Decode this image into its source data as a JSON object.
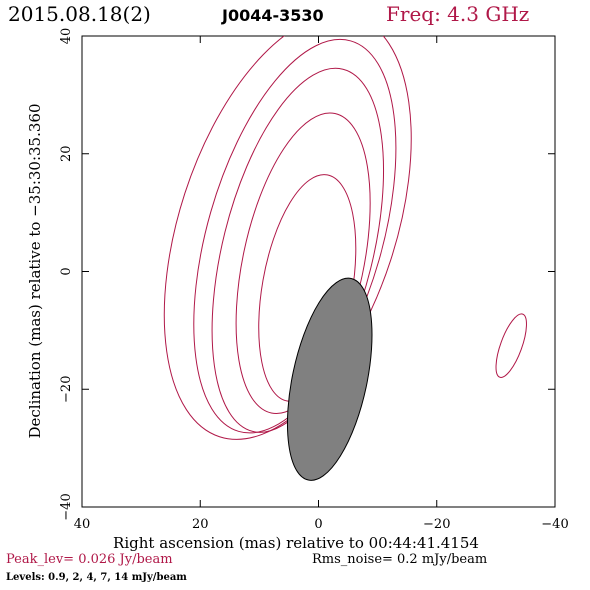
{
  "header": {
    "date": "2015.08.18(2)",
    "source": "J0044-3530",
    "freq": "Freq: 4.3 GHz"
  },
  "chart_data": {
    "type": "contour",
    "xlabel": "Right ascension (mas) relative to 00:44:41.4154",
    "ylabel": "Declination (mas) relative to −35:30:35.360",
    "xlim": [
      40,
      -40
    ],
    "ylim": [
      -40,
      40
    ],
    "x_ticks": [
      40,
      20,
      0,
      -20,
      -40
    ],
    "y_ticks": [
      -40,
      -20,
      0,
      20,
      40
    ],
    "x_tick_labels": [
      "40",
      "20",
      "0",
      "−20",
      "−40"
    ],
    "y_tick_labels": [
      "−40",
      "−20",
      "0",
      "20",
      "40"
    ],
    "contour_color": "#b01848",
    "contours": [
      {
        "level": 0.9,
        "cx": 5.2,
        "cy": 7.6,
        "a": 37.5,
        "b": 18.3,
        "pa": -18
      },
      {
        "level": 2,
        "cx": 4.0,
        "cy": 6.0,
        "a": 34.5,
        "b": 14.8,
        "pa": -16
      },
      {
        "level": 4,
        "cx": 3.5,
        "cy": 3.6,
        "a": 31.7,
        "b": 12.7,
        "pa": -14
      },
      {
        "level": 7,
        "cx": 2.6,
        "cy": 1.4,
        "a": 26.0,
        "b": 10.2,
        "pa": -12
      },
      {
        "level": 14,
        "cx": 1.9,
        "cy": -2.8,
        "a": 19.5,
        "b": 7.6,
        "pa": -10
      },
      {
        "level": 0.9,
        "cx": -32.6,
        "cy": -12.6,
        "a": 5.7,
        "b": 1.8,
        "pa": -20
      }
    ],
    "beam": {
      "cx": -1.9,
      "cy": -18.3,
      "a": 17.5,
      "b": 6.3,
      "pa": -12,
      "color": "#808080"
    }
  },
  "footer": {
    "peak": "Peak_lev=  0.026 Jy/beam",
    "rms": "Rms_noise=  0.2 mJy/beam",
    "levels": "Levels: 0.9,   2,   4,   7,  14 mJy/beam"
  }
}
